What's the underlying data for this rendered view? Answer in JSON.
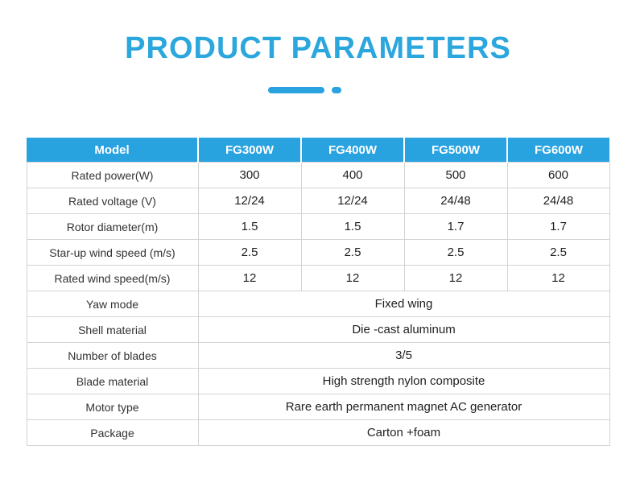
{
  "page": {
    "title": "PRODUCT PARAMETERS",
    "accent_color": "#29a2e0",
    "title_color": "#2ba7dd"
  },
  "table": {
    "header": [
      "Model",
      "FG300W",
      "FG400W",
      "FG500W",
      "FG600W"
    ],
    "rows": [
      {
        "label": "Rated power(W)",
        "values": [
          "300",
          "400",
          "500",
          "600"
        ]
      },
      {
        "label": "Rated voltage (V)",
        "values": [
          "12/24",
          "12/24",
          "24/48",
          "24/48"
        ]
      },
      {
        "label": "Rotor diameter(m)",
        "values": [
          "1.5",
          "1.5",
          "1.7",
          "1.7"
        ]
      },
      {
        "label": "Star-up wind speed (m/s)",
        "values": [
          "2.5",
          "2.5",
          "2.5",
          "2.5"
        ]
      },
      {
        "label": "Rated wind speed(m/s)",
        "values": [
          "12",
          "12",
          "12",
          "12"
        ]
      },
      {
        "label": "Yaw mode",
        "values": [
          "Fixed wing"
        ],
        "span": true
      },
      {
        "label": "Shell material",
        "values": [
          "Die -cast aluminum"
        ],
        "span": true
      },
      {
        "label": "Number of blades",
        "values": [
          "3/5"
        ],
        "span": true
      },
      {
        "label": "Blade material",
        "values": [
          "High strength nylon composite"
        ],
        "span": true
      },
      {
        "label": "Motor type",
        "values": [
          "Rare earth permanent magnet AC generator"
        ],
        "span": true
      },
      {
        "label": "Package",
        "values": [
          "Carton +foam"
        ],
        "span": true
      }
    ]
  }
}
